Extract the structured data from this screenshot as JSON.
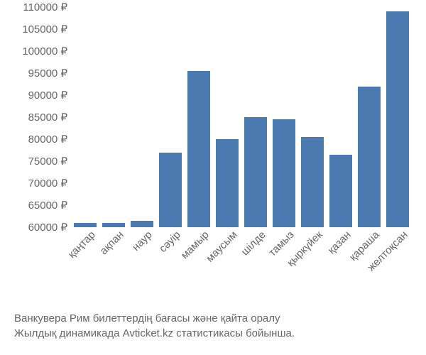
{
  "chart": {
    "type": "bar",
    "categories": [
      "қаңтар",
      "ақпан",
      "наур",
      "сәуір",
      "мамыр",
      "маусым",
      "шілде",
      "тамыз",
      "қыркүйек",
      "қазан",
      "қараша",
      "желтоқсан"
    ],
    "values": [
      61000,
      61000,
      61500,
      77000,
      95500,
      80000,
      85000,
      84500,
      80500,
      76500,
      92000,
      109000
    ],
    "bar_color": "#4a7ab0",
    "bar_width_ratio": 0.78,
    "y_axis": {
      "min": 60000,
      "max": 110000,
      "tick_step": 5000,
      "suffix": " ₽",
      "label_color": "#666666",
      "label_fontsize": 15
    },
    "x_axis": {
      "label_color": "#666666",
      "label_fontsize": 15,
      "rotation_deg": -45
    },
    "background_color": "#ffffff"
  },
  "caption": {
    "line1": "Ванкувера Рим билеттердің бағасы және қайта оралу",
    "line2": "Жылдық динамикада Avticket.kz статистикасы бойынша.",
    "color": "#666666",
    "fontsize": 15
  }
}
